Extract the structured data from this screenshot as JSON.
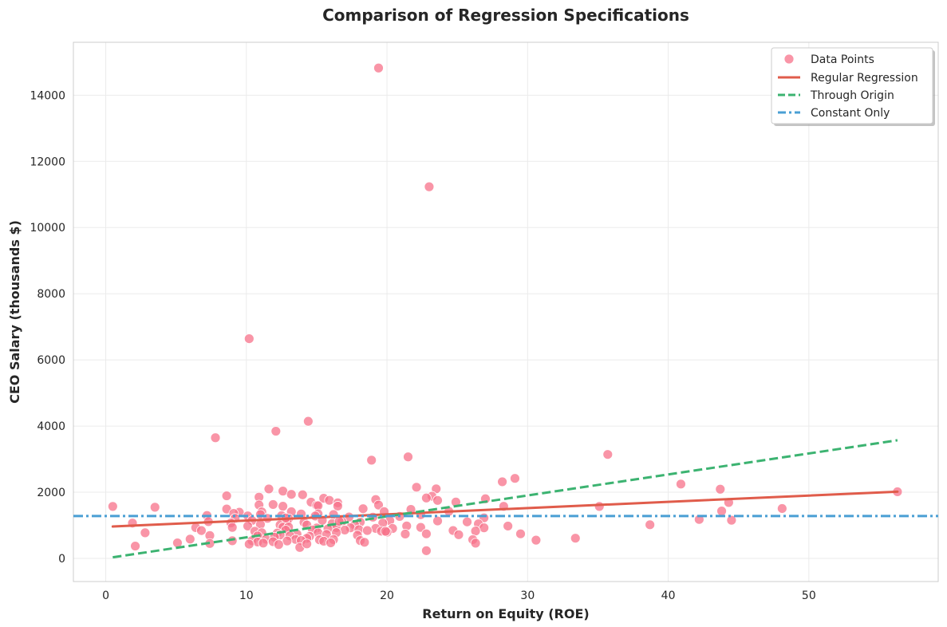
{
  "chart_data": {
    "type": "scatter",
    "title": "Comparison of Regression Specifications",
    "xlabel": "Return on Equity (ROE)",
    "ylabel": "CEO Salary (thousands $)",
    "xlim": [
      -2.3,
      59.2
    ],
    "ylim": [
      -700,
      15600
    ],
    "xticks": [
      0,
      10,
      20,
      30,
      40,
      50
    ],
    "yticks": [
      0,
      2000,
      4000,
      6000,
      8000,
      10000,
      12000,
      14000
    ],
    "grid": true,
    "legend_position": "top-right",
    "colors": {
      "points": "#f77189",
      "regular": "#e05c4b",
      "origin": "#3cb371",
      "constant": "#4a9fd4",
      "grid": "#ebebeb",
      "frame": "#cccccc"
    },
    "legend": {
      "points": "Data Points",
      "regular": "Regular Regression",
      "origin": "Through Origin",
      "constant": "Constant Only"
    },
    "series": [
      {
        "name": "Data Points",
        "kind": "scatter",
        "points": [
          [
            19.4,
            14822
          ],
          [
            23.0,
            11233
          ],
          [
            10.2,
            6640
          ],
          [
            14.4,
            4143
          ],
          [
            12.1,
            3844
          ],
          [
            7.8,
            3646
          ],
          [
            35.7,
            3142
          ],
          [
            21.5,
            3068
          ],
          [
            18.9,
            2968
          ],
          [
            29.1,
            2418
          ],
          [
            28.2,
            2316
          ],
          [
            40.9,
            2246
          ],
          [
            22.1,
            2150
          ],
          [
            23.5,
            2102
          ],
          [
            11.6,
            2099
          ],
          [
            43.7,
            2091
          ],
          [
            56.3,
            2014
          ],
          [
            12.6,
            2034
          ],
          [
            13.2,
            1935
          ],
          [
            14.0,
            1923
          ],
          [
            8.6,
            1891
          ],
          [
            23.2,
            1879
          ],
          [
            10.9,
            1852
          ],
          [
            22.8,
            1825
          ],
          [
            15.5,
            1817
          ],
          [
            27.0,
            1801
          ],
          [
            19.2,
            1778
          ],
          [
            15.9,
            1755
          ],
          [
            23.6,
            1752
          ],
          [
            14.6,
            1701
          ],
          [
            24.9,
            1702
          ],
          [
            44.3,
            1690
          ],
          [
            16.5,
            1680
          ],
          [
            11.9,
            1628
          ],
          [
            10.9,
            1614
          ],
          [
            19.4,
            1612
          ],
          [
            15.0,
            1601
          ],
          [
            15.1,
            1590
          ],
          [
            16.5,
            1580
          ],
          [
            28.3,
            1573
          ],
          [
            12.6,
            1575
          ],
          [
            35.1,
            1569
          ],
          [
            0.5,
            1570
          ],
          [
            3.5,
            1545
          ],
          [
            48.1,
            1507
          ],
          [
            18.3,
            1501
          ],
          [
            8.6,
            1491
          ],
          [
            21.7,
            1481
          ],
          [
            43.8,
            1431
          ],
          [
            24.4,
            1421
          ],
          [
            11.1,
            1405
          ],
          [
            19.8,
            1414
          ],
          [
            13.2,
            1411
          ],
          [
            9.5,
            1394
          ],
          [
            7.2,
            1295
          ],
          [
            11.0,
            1326
          ],
          [
            15.1,
            1346
          ],
          [
            9.1,
            1359
          ],
          [
            13.9,
            1340
          ],
          [
            16.2,
            1325
          ],
          [
            22.4,
            1320
          ],
          [
            10.1,
            1285
          ],
          [
            12.5,
            1290
          ],
          [
            14.9,
            1280
          ],
          [
            17.3,
            1250
          ],
          [
            20.9,
            1268
          ],
          [
            9.2,
            1210
          ],
          [
            11.5,
            1209
          ],
          [
            13.0,
            1199
          ],
          [
            19.0,
            1246
          ],
          [
            26.9,
            1225
          ],
          [
            42.2,
            1176
          ],
          [
            44.5,
            1153
          ],
          [
            7.3,
            1110
          ],
          [
            1.9,
            1067
          ],
          [
            8.9,
            1071
          ],
          [
            10.4,
            1145
          ],
          [
            12.9,
            1120
          ],
          [
            15.4,
            1150
          ],
          [
            16.8,
            1108
          ],
          [
            18.1,
            1095
          ],
          [
            20.2,
            1140
          ],
          [
            23.6,
            1131
          ],
          [
            25.7,
            1103
          ],
          [
            26.5,
            1043
          ],
          [
            14.1,
            1090
          ],
          [
            11.0,
            1026
          ],
          [
            12.4,
            1013
          ],
          [
            14.3,
            1011
          ],
          [
            16.1,
            1053
          ],
          [
            17.7,
            1012
          ],
          [
            19.7,
            1066
          ],
          [
            21.4,
            980
          ],
          [
            28.6,
            977
          ],
          [
            38.7,
            1016
          ],
          [
            6.4,
            931
          ],
          [
            9.0,
            937
          ],
          [
            10.1,
            977
          ],
          [
            12.6,
            944
          ],
          [
            13.0,
            950
          ],
          [
            15.0,
            918
          ],
          [
            16.4,
            931
          ],
          [
            17.4,
            925
          ],
          [
            19.2,
            907
          ],
          [
            20.4,
            904
          ],
          [
            22.4,
            937
          ],
          [
            26.9,
            925
          ],
          [
            6.8,
            841
          ],
          [
            10.6,
            819
          ],
          [
            12.8,
            853
          ],
          [
            14.7,
            859
          ],
          [
            15.8,
            890
          ],
          [
            17.0,
            857
          ],
          [
            18.0,
            869
          ],
          [
            19.6,
            823
          ],
          [
            24.7,
            842
          ],
          [
            26.3,
            827
          ],
          [
            7.4,
            689
          ],
          [
            11.1,
            774
          ],
          [
            12.2,
            766
          ],
          [
            13.6,
            734
          ],
          [
            15.1,
            771
          ],
          [
            16.4,
            779
          ],
          [
            18.6,
            842
          ],
          [
            20.0,
            790
          ],
          [
            21.3,
            736
          ],
          [
            22.8,
            742
          ],
          [
            25.1,
            715
          ],
          [
            29.5,
            742
          ],
          [
            2.8,
            774
          ],
          [
            10.8,
            677
          ],
          [
            12.4,
            706
          ],
          [
            13.1,
            681
          ],
          [
            14.5,
            667
          ],
          [
            15.7,
            725
          ],
          [
            17.9,
            700
          ],
          [
            9.0,
            532
          ],
          [
            10.4,
            536
          ],
          [
            11.4,
            580
          ],
          [
            12.0,
            643
          ],
          [
            13.5,
            574
          ],
          [
            14.3,
            608
          ],
          [
            15.2,
            561
          ],
          [
            16.2,
            569
          ],
          [
            18.1,
            539
          ],
          [
            30.6,
            551
          ],
          [
            33.4,
            610
          ],
          [
            6.0,
            583
          ],
          [
            10.8,
            495
          ],
          [
            11.9,
            505
          ],
          [
            12.9,
            526
          ],
          [
            13.9,
            540
          ],
          [
            15.5,
            519
          ],
          [
            16.0,
            470
          ],
          [
            18.4,
            486
          ],
          [
            26.1,
            567
          ],
          [
            5.1,
            468
          ],
          [
            7.4,
            451
          ],
          [
            10.2,
            431
          ],
          [
            11.2,
            462
          ],
          [
            12.3,
            418
          ],
          [
            13.8,
            331
          ],
          [
            14.3,
            439
          ],
          [
            22.8,
            232
          ],
          [
            2.1,
            372
          ],
          [
            26.3,
            460
          ],
          [
            19.9,
            818
          ],
          [
            16.6,
            1120
          ],
          [
            12.8,
            1220
          ]
        ]
      },
      {
        "name": "Regular Regression",
        "kind": "line",
        "points": [
          [
            0.5,
            963
          ],
          [
            56.3,
            2017
          ]
        ]
      },
      {
        "name": "Through Origin",
        "kind": "dashed-line",
        "points": [
          [
            0.5,
            32
          ],
          [
            56.3,
            3570
          ]
        ]
      },
      {
        "name": "Constant Only",
        "kind": "horizontal-line",
        "value": 1281
      }
    ]
  }
}
